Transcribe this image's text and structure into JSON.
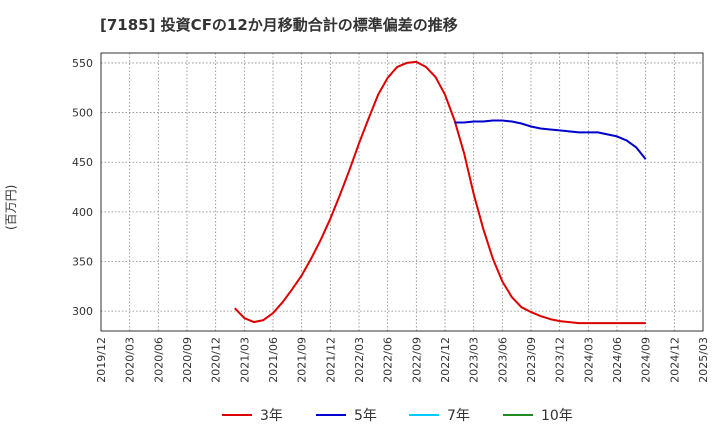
{
  "title": "[7185]  投資CFの12か月移動合計の標準偏差の推移",
  "chart_data": {
    "type": "line",
    "ylabel": "(百万円)",
    "ylim": [
      280,
      560
    ],
    "y_ticks": [
      300,
      350,
      400,
      450,
      500,
      550
    ],
    "x_ticks": [
      "2019/12",
      "2020/03",
      "2020/06",
      "2020/09",
      "2020/12",
      "2021/03",
      "2021/06",
      "2021/09",
      "2021/12",
      "2022/03",
      "2022/06",
      "2022/09",
      "2022/12",
      "2023/03",
      "2023/06",
      "2023/09",
      "2023/12",
      "2024/03",
      "2024/06",
      "2024/09",
      "2024/12",
      "2025/03"
    ],
    "grid": true,
    "legend_position": "bottom",
    "series": [
      {
        "name": "3年",
        "color": "#dd0000",
        "points": [
          [
            "2021/02",
            303
          ],
          [
            "2021/03",
            293
          ],
          [
            "2021/04",
            289
          ],
          [
            "2021/05",
            291
          ],
          [
            "2021/06",
            298
          ],
          [
            "2021/07",
            309
          ],
          [
            "2021/08",
            322
          ],
          [
            "2021/09",
            336
          ],
          [
            "2021/10",
            353
          ],
          [
            "2021/11",
            372
          ],
          [
            "2021/12",
            393
          ],
          [
            "2022/01",
            417
          ],
          [
            "2022/02",
            442
          ],
          [
            "2022/03",
            469
          ],
          [
            "2022/04",
            494
          ],
          [
            "2022/05",
            518
          ],
          [
            "2022/06",
            535
          ],
          [
            "2022/07",
            546
          ],
          [
            "2022/08",
            550
          ],
          [
            "2022/09",
            551
          ],
          [
            "2022/10",
            546
          ],
          [
            "2022/11",
            536
          ],
          [
            "2022/12",
            518
          ],
          [
            "2023/01",
            492
          ],
          [
            "2023/02",
            459
          ],
          [
            "2023/03",
            418
          ],
          [
            "2023/04",
            383
          ],
          [
            "2023/05",
            353
          ],
          [
            "2023/06",
            330
          ],
          [
            "2023/07",
            314
          ],
          [
            "2023/08",
            304
          ],
          [
            "2023/09",
            299
          ],
          [
            "2023/10",
            295
          ],
          [
            "2023/11",
            292
          ],
          [
            "2023/12",
            290
          ],
          [
            "2024/01",
            289
          ],
          [
            "2024/02",
            288
          ],
          [
            "2024/03",
            288
          ],
          [
            "2024/04",
            288
          ],
          [
            "2024/05",
            288
          ],
          [
            "2024/06",
            288
          ],
          [
            "2024/07",
            288
          ],
          [
            "2024/08",
            288
          ],
          [
            "2024/09",
            288
          ]
        ]
      },
      {
        "name": "5年",
        "color": "#0000cc",
        "points": [
          [
            "2023/01",
            490
          ],
          [
            "2023/02",
            490
          ],
          [
            "2023/03",
            491
          ],
          [
            "2023/04",
            491
          ],
          [
            "2023/05",
            492
          ],
          [
            "2023/06",
            492
          ],
          [
            "2023/07",
            491
          ],
          [
            "2023/08",
            489
          ],
          [
            "2023/09",
            486
          ],
          [
            "2023/10",
            484
          ],
          [
            "2023/11",
            483
          ],
          [
            "2023/12",
            482
          ],
          [
            "2024/01",
            481
          ],
          [
            "2024/02",
            480
          ],
          [
            "2024/03",
            480
          ],
          [
            "2024/04",
            480
          ],
          [
            "2024/05",
            478
          ],
          [
            "2024/06",
            476
          ],
          [
            "2024/07",
            472
          ],
          [
            "2024/08",
            465
          ],
          [
            "2024/09",
            453
          ]
        ]
      },
      {
        "name": "7年",
        "color": "#00ccff",
        "points": []
      },
      {
        "name": "10年",
        "color": "#228b22",
        "points": []
      }
    ]
  }
}
